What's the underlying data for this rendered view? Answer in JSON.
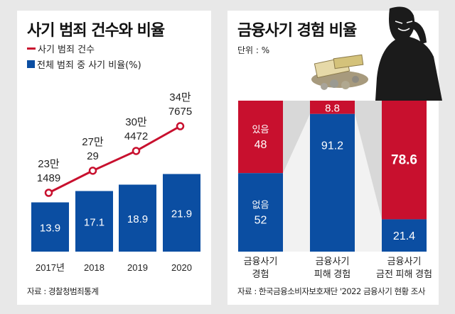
{
  "colors": {
    "red": "#c8102e",
    "blue": "#0b4ea2",
    "gray": "#cfcfcf"
  },
  "chart_data": [
    {
      "type": "bar+line",
      "title": "사기 범죄 건수와 비율",
      "legend": [
        {
          "label": "사기 범죄 건수",
          "kind": "line"
        },
        {
          "label": "전체 범죄 중 사기 비율(%)",
          "kind": "bar"
        }
      ],
      "categories": [
        "2017년",
        "2018",
        "2019",
        "2020"
      ],
      "bar_series": {
        "name": "전체 범죄 중 사기 비율(%)",
        "values": [
          13.9,
          17.1,
          18.9,
          21.9
        ],
        "labels": [
          "13.9",
          "17.1",
          "18.9",
          "21.9"
        ]
      },
      "line_series": {
        "name": "사기 범죄 건수",
        "values": [
          231489,
          270029,
          304472,
          347675
        ],
        "labels": [
          [
            "23만",
            "1489"
          ],
          [
            "27만",
            "29"
          ],
          [
            "30만",
            "4472"
          ],
          [
            "34만",
            "7675"
          ]
        ]
      },
      "source": "자료 : 경찰청범죄통계"
    },
    {
      "type": "stacked-bar",
      "title": "금융사기 경험 비율",
      "unit": "단위 : %",
      "categories": [
        [
          "금융사기",
          "경험"
        ],
        [
          "금융사기",
          "피해 경험"
        ],
        [
          "금융사기",
          "금전 피해 경험"
        ]
      ],
      "series": [
        {
          "name": "red",
          "values": [
            48,
            8.8,
            78.6
          ],
          "labels": [
            "48",
            "8.8",
            "78.6"
          ],
          "sublabels": [
            "있음",
            "",
            ""
          ]
        },
        {
          "name": "blue",
          "values": [
            52,
            91.2,
            21.4
          ],
          "labels": [
            "52",
            "91.2",
            "21.4"
          ],
          "sublabels": [
            "없음",
            "",
            ""
          ]
        }
      ],
      "source": "자료 : 한국금융소비자보호재단 '2022 금융사기 현황 조사"
    }
  ]
}
